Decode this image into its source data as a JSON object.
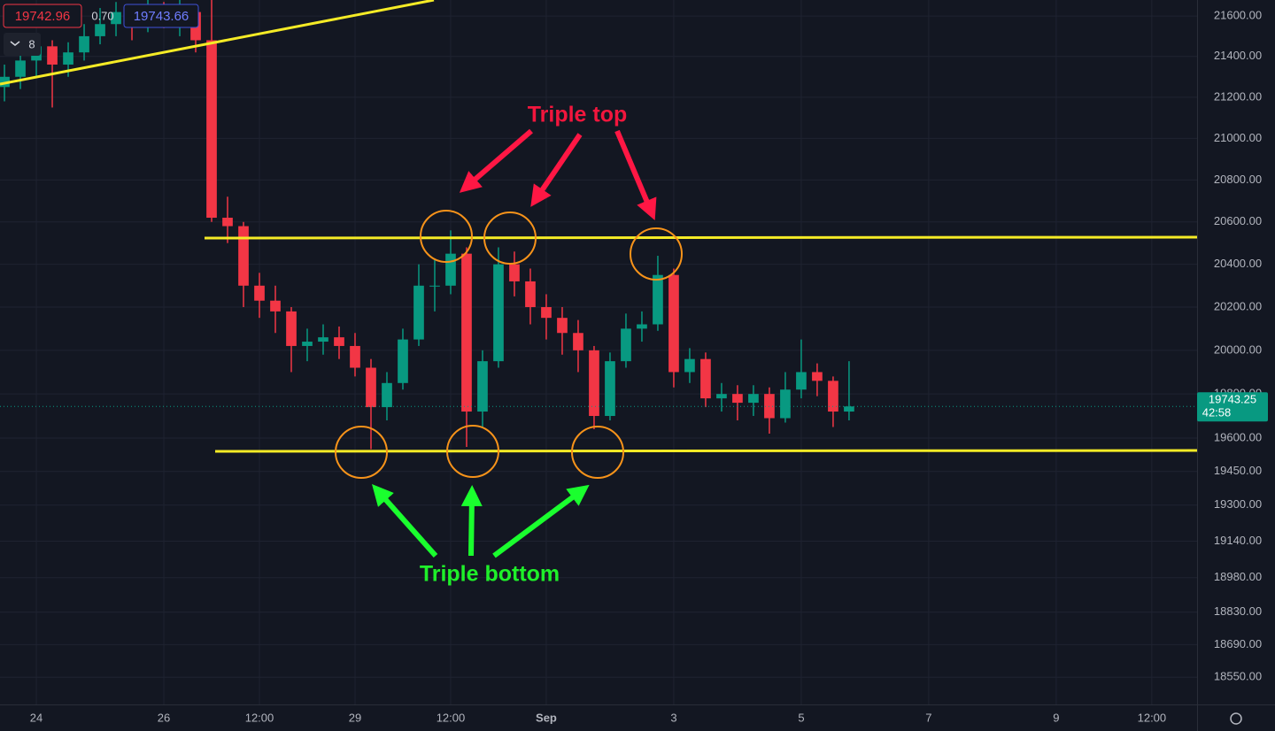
{
  "toolbar": {
    "sell": "19742.96",
    "spread": "0.70",
    "buy": "19743.66",
    "interval": "8"
  },
  "chart_data": {
    "type": "candlestick",
    "log": true,
    "grid": true,
    "up_color": "#089981",
    "down_color": "#f23645",
    "ylim": [
      18434,
      21680
    ],
    "yticks": [
      {
        "value": 18550,
        "label": "18550.00"
      },
      {
        "value": 18690,
        "label": "18690.00"
      },
      {
        "value": 18830,
        "label": "18830.00"
      },
      {
        "value": 18980,
        "label": "18980.00"
      },
      {
        "value": 19140,
        "label": "19140.00"
      },
      {
        "value": 19300,
        "label": "19300.00"
      },
      {
        "value": 19450,
        "label": "19450.00"
      },
      {
        "value": 19600,
        "label": "19600.00"
      },
      {
        "value": 19800,
        "label": "19800.00"
      },
      {
        "value": 20000,
        "label": "20000.00"
      },
      {
        "value": 20200,
        "label": "20200.00"
      },
      {
        "value": 20400,
        "label": "20400.00"
      },
      {
        "value": 20600,
        "label": "20600.00"
      },
      {
        "value": 20800,
        "label": "20800.00"
      },
      {
        "value": 21000,
        "label": "21000.00"
      },
      {
        "value": 21200,
        "label": "21200.00"
      },
      {
        "value": 21400,
        "label": "21400.00"
      },
      {
        "value": 21600,
        "label": "21600.00"
      }
    ],
    "xlim": [
      -0.57,
      18.21
    ],
    "xticks": [
      {
        "value": 0,
        "label": "24"
      },
      {
        "value": 2,
        "label": "26"
      },
      {
        "value": 3.5,
        "label": "12:00"
      },
      {
        "value": 5,
        "label": "29"
      },
      {
        "value": 6.5,
        "label": "12:00"
      },
      {
        "value": 8,
        "label": "Sep"
      },
      {
        "value": 10,
        "label": "3"
      },
      {
        "value": 12,
        "label": "5"
      },
      {
        "value": 14,
        "label": "7"
      },
      {
        "value": 16,
        "label": "9"
      },
      {
        "value": 17.5,
        "label": "12:00"
      }
    ],
    "candles": {
      "x": [
        -0.5,
        -0.25,
        0,
        0.25,
        0.5,
        0.75,
        1,
        1.25,
        1.5,
        1.75,
        2,
        2.25,
        2.5,
        2.75,
        3,
        3.25,
        3.5,
        3.75,
        4,
        4.25,
        4.5,
        4.75,
        5,
        5.25,
        5.5,
        5.75,
        6,
        6.25,
        6.5,
        6.75,
        7,
        7.25,
        7.5,
        7.75,
        8,
        8.25,
        8.5,
        8.75,
        9,
        9.25,
        9.5,
        9.75,
        10,
        10.25,
        10.5,
        10.75,
        11,
        11.25,
        11.5,
        11.75,
        12,
        12.25,
        12.5,
        12.75
      ],
      "open": [
        21250,
        21300,
        21380,
        21450,
        21360,
        21420,
        21500,
        21560,
        21620,
        21580,
        21640,
        21600,
        21620,
        21480,
        20620,
        20580,
        20300,
        20230,
        20180,
        20020,
        20040,
        20060,
        20020,
        19920,
        19740,
        19850,
        20050,
        20300,
        20300,
        20450,
        19720,
        19950,
        20400,
        20320,
        20200,
        20150,
        20080,
        20000,
        19700,
        19950,
        20100,
        20120,
        20350,
        19900,
        19960,
        19780,
        19800,
        19760,
        19800,
        19690,
        19820,
        19900,
        19860,
        19720
      ],
      "high": [
        21360,
        21420,
        21500,
        21480,
        21470,
        21560,
        21640,
        21670,
        21660,
        21680,
        21670,
        21680,
        21660,
        21680,
        20720,
        20600,
        20360,
        20300,
        20200,
        20100,
        20120,
        20110,
        20080,
        19960,
        19900,
        20100,
        20400,
        20420,
        20560,
        20480,
        20000,
        20480,
        20460,
        20380,
        20260,
        20200,
        20140,
        20020,
        19990,
        20170,
        20180,
        20440,
        20380,
        20010,
        19990,
        19850,
        19840,
        19840,
        19830,
        19900,
        20050,
        19940,
        19880,
        19950
      ],
      "low": [
        21180,
        21240,
        21300,
        21150,
        21300,
        21380,
        21460,
        21500,
        21480,
        21520,
        21540,
        21500,
        21420,
        20600,
        20500,
        20200,
        20150,
        20080,
        19900,
        19950,
        19980,
        19960,
        19880,
        19550,
        19680,
        19820,
        20020,
        20180,
        20260,
        19560,
        19650,
        19920,
        20250,
        20120,
        20050,
        19980,
        19900,
        19640,
        19680,
        19920,
        20040,
        20090,
        19830,
        19850,
        19740,
        19720,
        19680,
        19700,
        19620,
        19670,
        19780,
        19790,
        19650,
        19680
      ],
      "close": [
        21300,
        21380,
        21450,
        21360,
        21420,
        21500,
        21560,
        21620,
        21580,
        21640,
        21600,
        21620,
        21480,
        20620,
        20580,
        20300,
        20230,
        20180,
        20020,
        20040,
        20060,
        20020,
        19920,
        19740,
        19850,
        20050,
        20300,
        20300,
        20450,
        19720,
        19950,
        20400,
        20320,
        20200,
        20150,
        20080,
        20000,
        19700,
        19950,
        20100,
        20120,
        20350,
        19900,
        19960,
        19780,
        19800,
        19760,
        19800,
        19690,
        19820,
        19900,
        19860,
        19720,
        19743.25
      ]
    },
    "last_price": 19743.25,
    "countdown": "42:58",
    "annotations": [
      "Triple top",
      "Triple bottom"
    ]
  }
}
